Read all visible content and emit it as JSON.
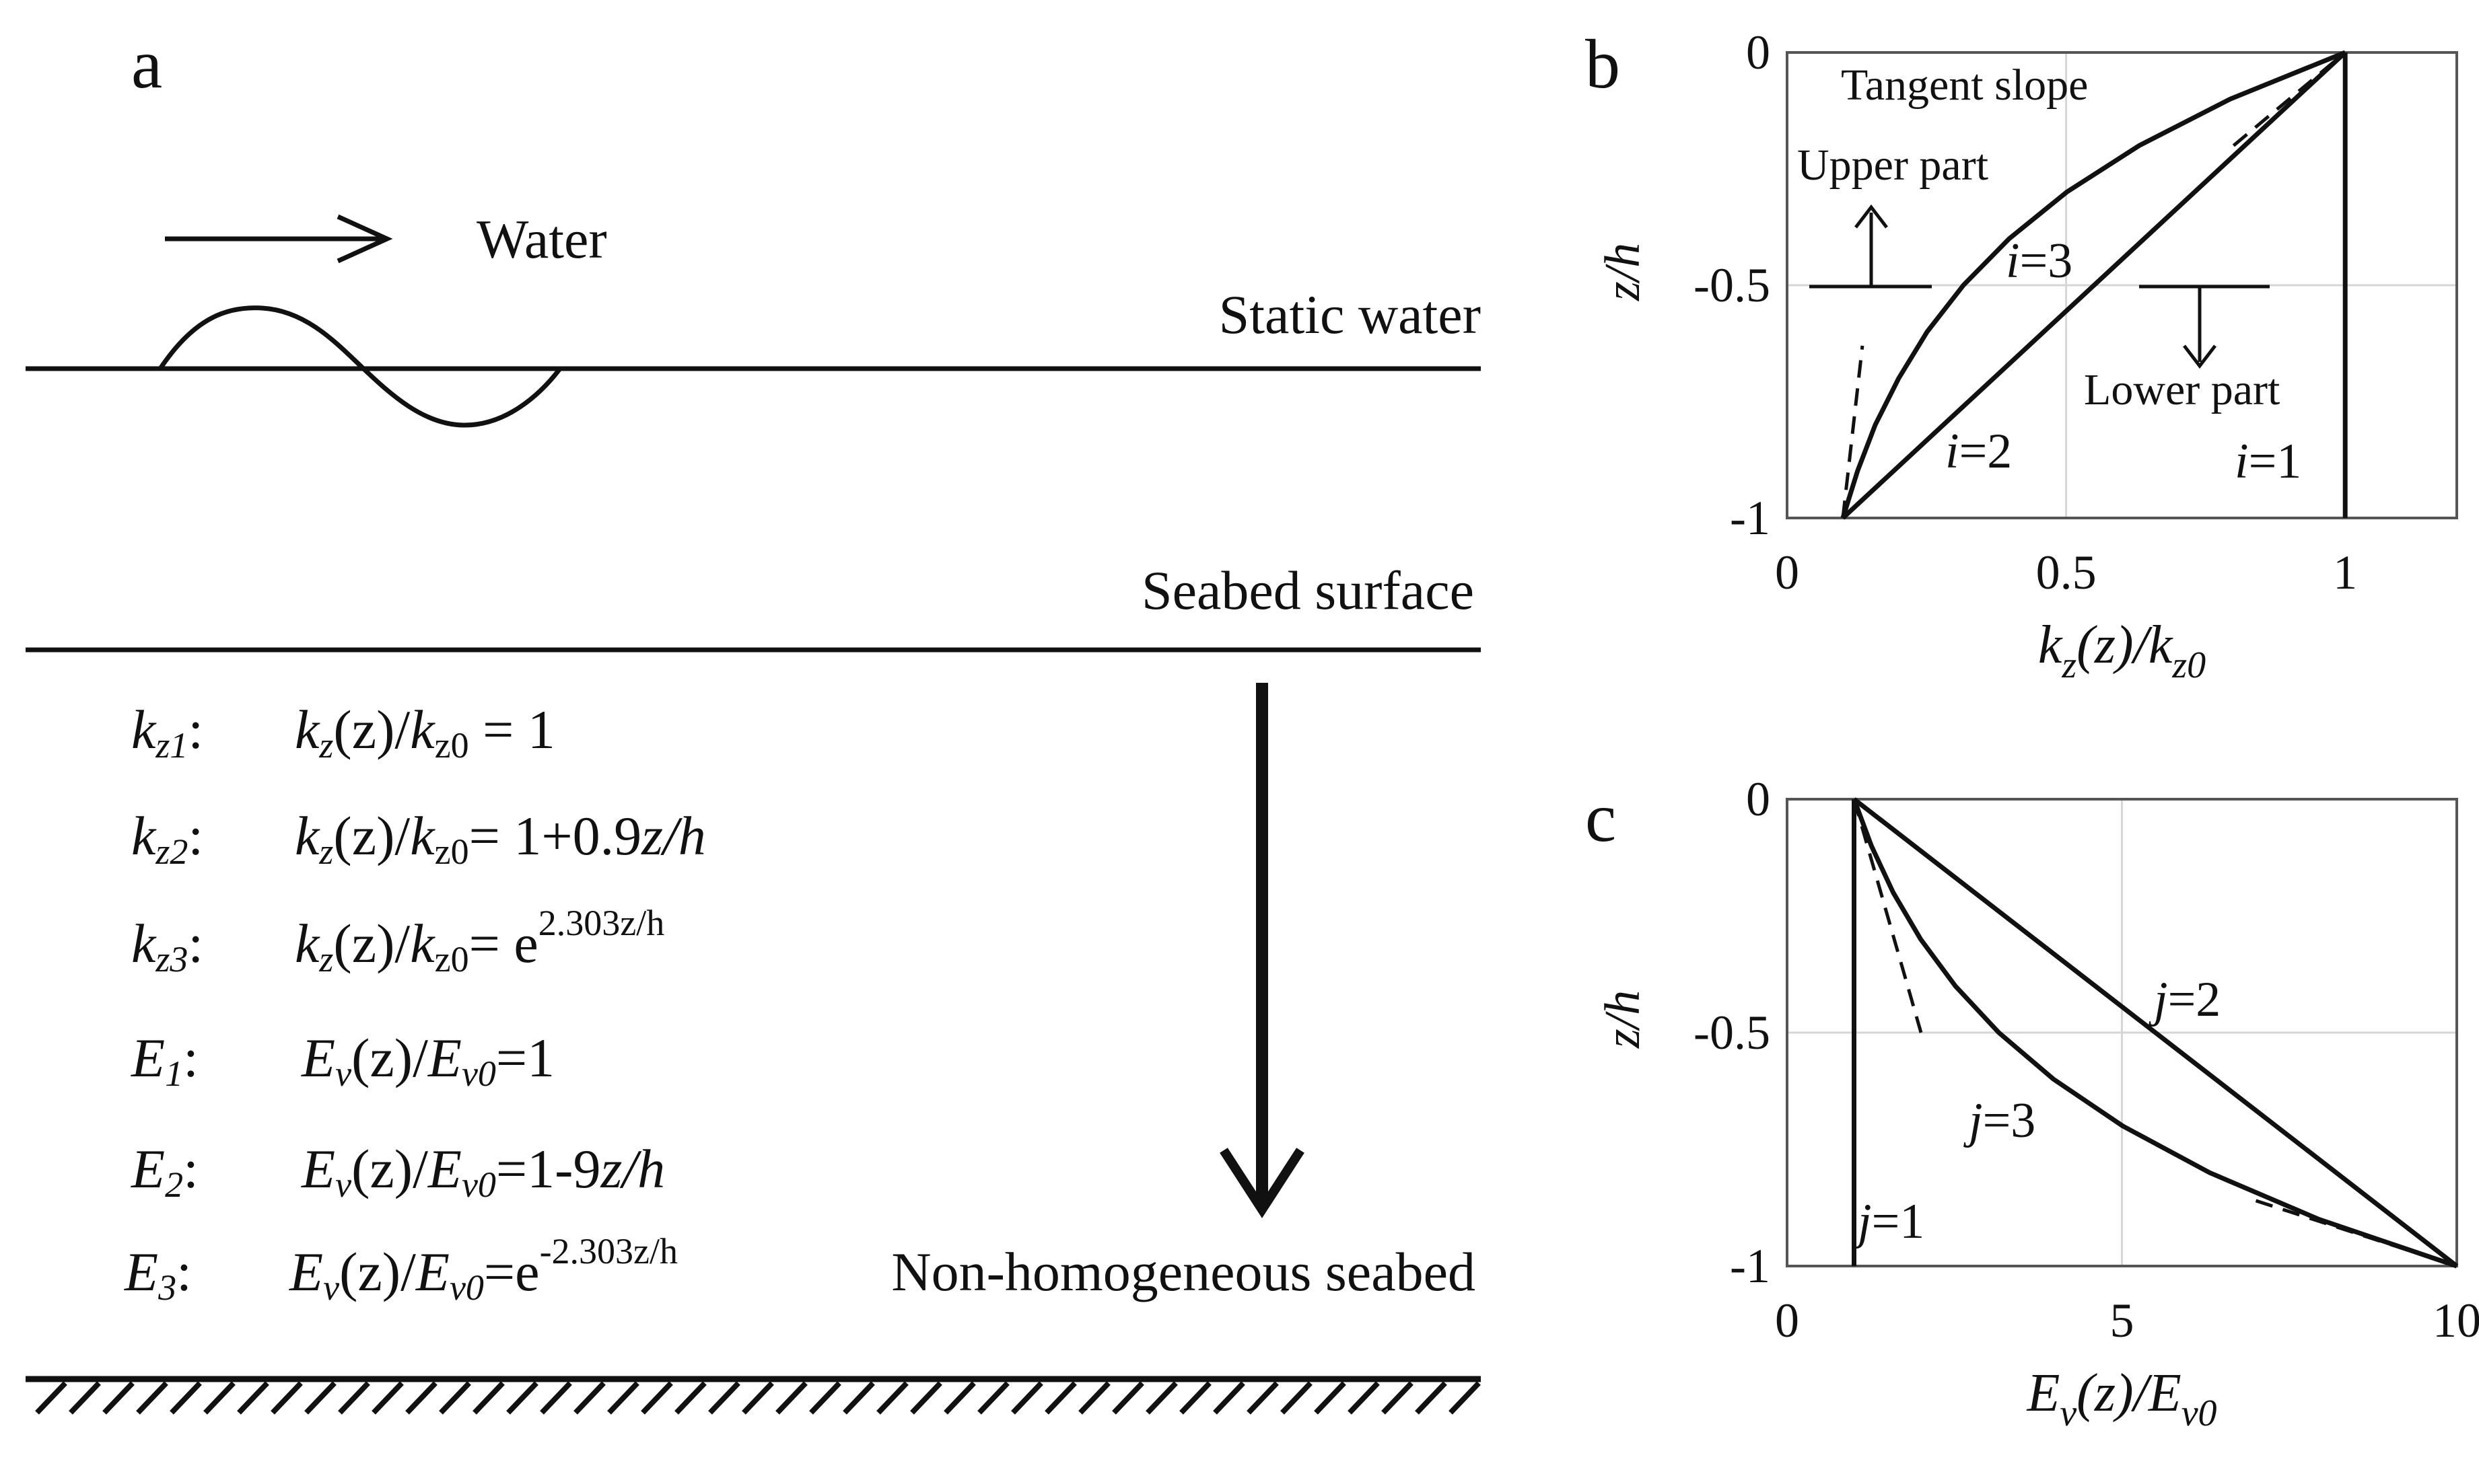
{
  "panel_a": {
    "label": "a",
    "water_label": "Water",
    "static_water_label": "Static water",
    "seabed_surface_label": "Seabed surface",
    "seabed_label": "Non-homogeneous seabed",
    "equations": [
      {
        "name_main": "k",
        "name_sub": "z1",
        "lhs_main": "k",
        "lhs_sub": "z",
        "lhs_mid": "(z)/",
        "lhs_den": "k",
        "lhs_den_sub": "z0",
        "rhs": " = 1",
        "rhs_sup": ""
      },
      {
        "name_main": "k",
        "name_sub": "z2",
        "lhs_main": "k",
        "lhs_sub": "z",
        "lhs_mid": "(z)/",
        "lhs_den": "k",
        "lhs_den_sub": "z0",
        "rhs": "= 1+0.9",
        "rhs_var": "z/h",
        "rhs_sup": ""
      },
      {
        "name_main": "k",
        "name_sub": "z3",
        "lhs_main": "k",
        "lhs_sub": "z",
        "lhs_mid": "(z)/",
        "lhs_den": "k",
        "lhs_den_sub": "z0",
        "rhs": "= e",
        "rhs_sup": "2.303z/h"
      },
      {
        "name_main": "E",
        "name_sub": "1",
        "lhs_main": "E",
        "lhs_sub": "v",
        "lhs_mid": "(z)/",
        "lhs_den": "E",
        "lhs_den_sub": "v0",
        "rhs": "=1",
        "rhs_sup": ""
      },
      {
        "name_main": "E",
        "name_sub": "2",
        "lhs_main": "E",
        "lhs_sub": "v",
        "lhs_mid": "(z)/",
        "lhs_den": "E",
        "lhs_den_sub": "v0",
        "rhs": "=1-9",
        "rhs_var": "z/h",
        "rhs_sup": ""
      },
      {
        "name_main": "E",
        "name_sub": "3",
        "lhs_main": "E",
        "lhs_sub": "v",
        "lhs_mid": "(z)/",
        "lhs_den": "E",
        "lhs_den_sub": "v0",
        "rhs": "=e",
        "rhs_sup": "-2.303z/h"
      }
    ]
  },
  "chart_data": [
    {
      "panel": "b",
      "type": "line",
      "xlabel_main": "k",
      "xlabel_sub1": "z",
      "xlabel_mid": "(z)/k",
      "xlabel_sub2": "z0",
      "ylabel": "z/h",
      "xlim": [
        0,
        1.2
      ],
      "ylim": [
        -1,
        0
      ],
      "xticks": [
        "0",
        "0.5",
        "1"
      ],
      "yticks": [
        "0",
        "-0.5",
        "-1"
      ],
      "grid": true,
      "series": [
        {
          "name": "i=1",
          "x": [
            1,
            1
          ],
          "y": [
            -1,
            0
          ]
        },
        {
          "name": "i=2",
          "x": [
            0.1,
            1
          ],
          "y": [
            -1,
            0
          ]
        },
        {
          "name": "i=3",
          "x": [
            0.1,
            0.126,
            0.158,
            0.2,
            0.251,
            0.316,
            0.398,
            0.501,
            0.631,
            0.794,
            1.0
          ],
          "y": [
            -1,
            -0.9,
            -0.8,
            -0.7,
            -0.6,
            -0.5,
            -0.4,
            -0.3,
            -0.2,
            -0.1,
            0
          ]
        }
      ],
      "annotations": [
        "Tangent slope",
        "Upper part",
        "Lower part"
      ]
    },
    {
      "panel": "c",
      "type": "line",
      "xlabel_main": "E",
      "xlabel_sub1": "v",
      "xlabel_mid": "(z)/E",
      "xlabel_sub2": "v0",
      "ylabel": "z/h",
      "xlim": [
        0,
        10
      ],
      "ylim": [
        -1,
        0
      ],
      "xticks": [
        "0",
        "5",
        "10"
      ],
      "yticks": [
        "0",
        "-0.5",
        "-1"
      ],
      "grid": true,
      "series": [
        {
          "name": "j=1",
          "x": [
            1,
            1
          ],
          "y": [
            -1,
            0
          ]
        },
        {
          "name": "j=2",
          "x": [
            1,
            10
          ],
          "y": [
            0,
            -1
          ]
        },
        {
          "name": "j=3",
          "x": [
            1.0,
            1.259,
            1.585,
            1.995,
            2.512,
            3.162,
            3.981,
            5.012,
            6.31,
            7.943,
            10.0
          ],
          "y": [
            0,
            -0.1,
            -0.2,
            -0.3,
            -0.4,
            -0.5,
            -0.6,
            -0.7,
            -0.8,
            -0.9,
            -1
          ]
        }
      ]
    }
  ]
}
